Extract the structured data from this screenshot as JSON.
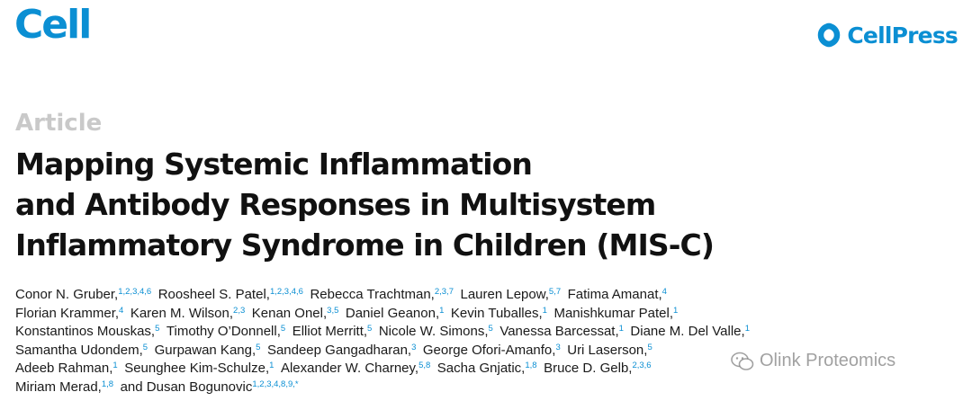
{
  "colors": {
    "brand": "#0b8fd3",
    "article_type": "#c9c9c9",
    "affiliation": "#0b8fd3"
  },
  "header": {
    "journal": "Cell",
    "publisher": "CellPress",
    "publisher_icon": "cellpress-logo-icon"
  },
  "article": {
    "type": "Article",
    "title_lines": [
      "Mapping Systemic Inflammation",
      "and Antibody Responses in Multisystem",
      "Inflammatory Syndrome in Children (MIS-C)"
    ]
  },
  "author_lines": [
    [
      {
        "name": "Conor N. Gruber,",
        "aff": "1,2,3,4,6"
      },
      {
        "name": "Roosheel S. Patel,",
        "aff": "1,2,3,4,6"
      },
      {
        "name": "Rebecca Trachtman,",
        "aff": "2,3,7"
      },
      {
        "name": "Lauren Lepow,",
        "aff": "5,7"
      },
      {
        "name": "Fatima Amanat,",
        "aff": "4"
      }
    ],
    [
      {
        "name": "Florian Krammer,",
        "aff": "4"
      },
      {
        "name": "Karen M. Wilson,",
        "aff": "2,3"
      },
      {
        "name": "Kenan Onel,",
        "aff": "3,5"
      },
      {
        "name": "Daniel Geanon,",
        "aff": "1"
      },
      {
        "name": "Kevin Tuballes,",
        "aff": "1"
      },
      {
        "name": "Manishkumar Patel,",
        "aff": "1"
      }
    ],
    [
      {
        "name": "Konstantinos Mouskas,",
        "aff": "5"
      },
      {
        "name": "Timothy O’Donnell,",
        "aff": "5"
      },
      {
        "name": "Elliot Merritt,",
        "aff": "5"
      },
      {
        "name": "Nicole W. Simons,",
        "aff": "5"
      },
      {
        "name": "Vanessa Barcessat,",
        "aff": "1"
      },
      {
        "name": "Diane M. Del Valle,",
        "aff": "1"
      }
    ],
    [
      {
        "name": "Samantha Udondem,",
        "aff": "5"
      },
      {
        "name": "Gurpawan Kang,",
        "aff": "5"
      },
      {
        "name": "Sandeep Gangadharan,",
        "aff": "3"
      },
      {
        "name": "George Ofori-Amanfo,",
        "aff": "3"
      },
      {
        "name": "Uri Laserson,",
        "aff": "5"
      }
    ],
    [
      {
        "name": "Adeeb Rahman,",
        "aff": "1"
      },
      {
        "name": "Seunghee Kim-Schulze,",
        "aff": "1"
      },
      {
        "name": "Alexander W. Charney,",
        "aff": "5,8"
      },
      {
        "name": "Sacha Gnjatic,",
        "aff": "1,8"
      },
      {
        "name": "Bruce D. Gelb,",
        "aff": "2,3,6"
      }
    ],
    [
      {
        "name": "Miriam Merad,",
        "aff": "1,8"
      },
      {
        "name": "and Dusan Bogunovic",
        "aff": "1,2,3,4,8,9,*"
      }
    ]
  ],
  "watermark": {
    "text": "Olink Proteomics",
    "icon": "wechat-icon"
  }
}
